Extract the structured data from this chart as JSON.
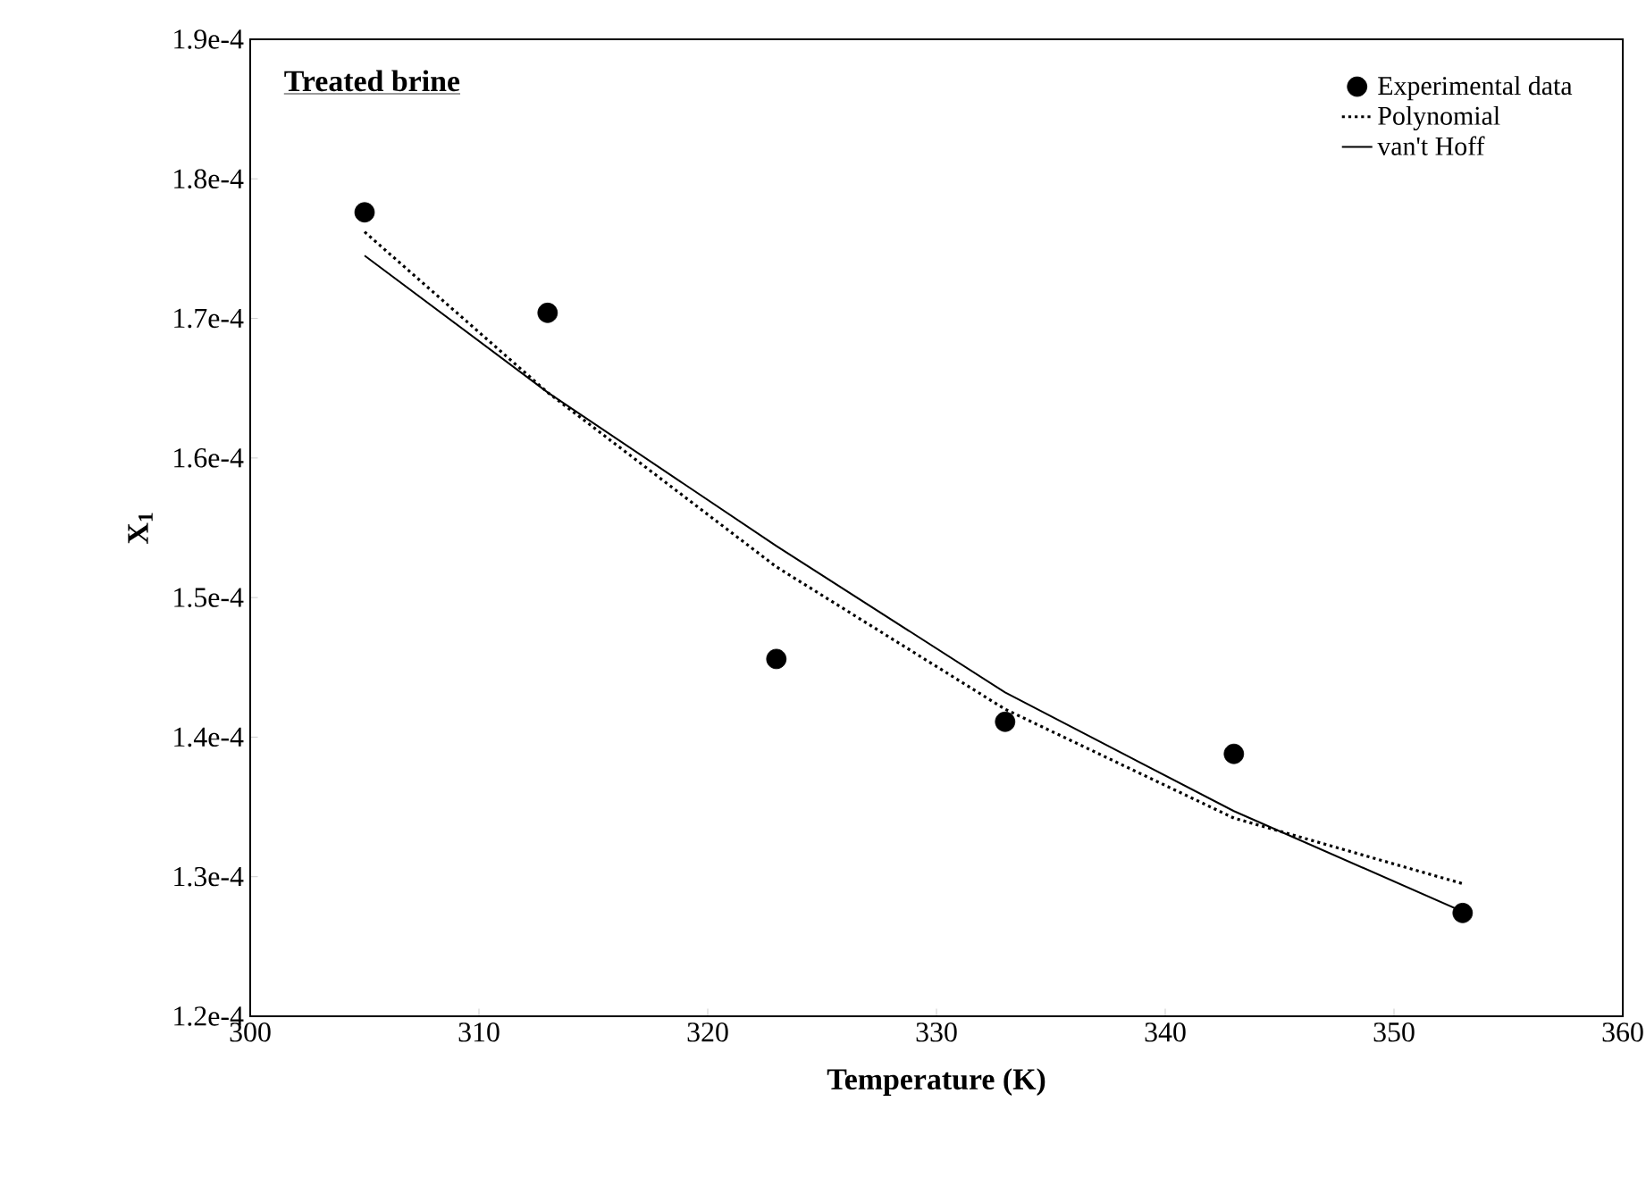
{
  "chart_data": {
    "type": "scatter",
    "title": "Treated brine",
    "xlabel": "Temperature (K)",
    "ylabel": "X$_{1}$",
    "xlim": [
      300,
      360
    ],
    "xticks": [
      300,
      310,
      320,
      330,
      340,
      350,
      360
    ],
    "ylim": [
      0.00012,
      0.00019
    ],
    "yticks": [
      {
        "value": 0.00012,
        "label": "1.2e-4"
      },
      {
        "value": 0.00013,
        "label": "1.3e-4"
      },
      {
        "value": 0.00014,
        "label": "1.4e-4"
      },
      {
        "value": 0.00015,
        "label": "1.5e-4"
      },
      {
        "value": 0.00016,
        "label": "1.6e-4"
      },
      {
        "value": 0.00017,
        "label": "1.7e-4"
      },
      {
        "value": 0.00018,
        "label": "1.8e-4"
      },
      {
        "value": 0.00019,
        "label": "1.9e-4"
      }
    ],
    "legend": "top right",
    "grid": false,
    "series": [
      {
        "name": "Experimental data",
        "marker": "circle",
        "color": "#000000",
        "x": [
          305,
          313,
          323,
          333,
          343,
          353
        ],
        "values": [
          0.0001776,
          0.0001704,
          0.0001456,
          0.0001411,
          0.0001388,
          0.0001274
        ]
      },
      {
        "name": "Polynomial",
        "type": "line",
        "line_style": "dotted",
        "marker": "none",
        "color": "#000000",
        "x": [
          305,
          313,
          323,
          333,
          343,
          353
        ],
        "values": [
          0.0001762,
          0.0001647,
          0.0001522,
          0.000142,
          0.0001342,
          0.0001295
        ]
      },
      {
        "name": "van't Hoff",
        "type": "line",
        "line_style": "solid",
        "marker": "none",
        "color": "#000000",
        "x": [
          305,
          313,
          323,
          333,
          343,
          353
        ],
        "values": [
          0.0001745,
          0.0001647,
          0.0001537,
          0.0001432,
          0.0001347,
          0.0001275
        ]
      }
    ]
  }
}
